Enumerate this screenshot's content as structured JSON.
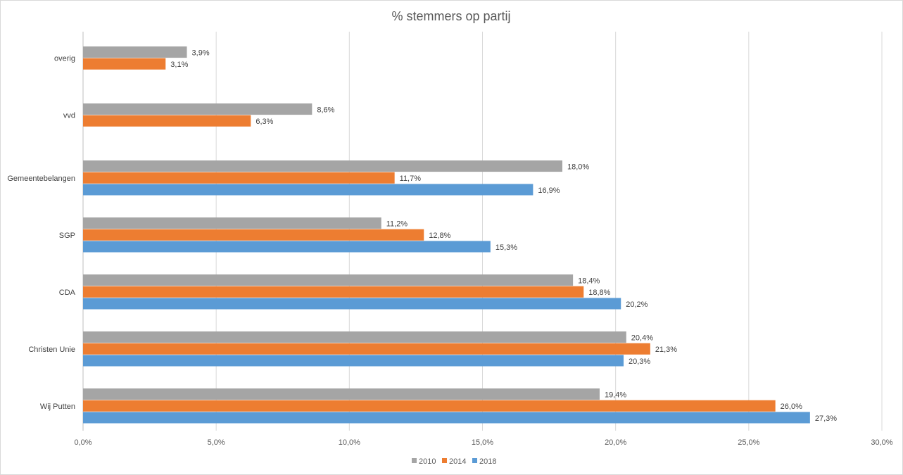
{
  "chart_data": {
    "type": "bar",
    "orientation": "horizontal",
    "title": "% stemmers op partij",
    "xlabel": "",
    "ylabel": "",
    "xlim": [
      0,
      30
    ],
    "x_ticks": [
      "0,0%",
      "5,0%",
      "10,0%",
      "15,0%",
      "20,0%",
      "25,0%",
      "30,0%"
    ],
    "grid": true,
    "legend_position": "bottom",
    "categories": [
      "overig",
      "vvd",
      "Gemeentebelangen",
      "SGP",
      "CDA",
      "Christen Unie",
      "Wij Putten"
    ],
    "series": [
      {
        "name": "2010",
        "color": "#a5a5a5",
        "values": [
          3.9,
          8.6,
          18.0,
          11.2,
          18.4,
          20.4,
          19.4
        ],
        "labels": [
          "3,9%",
          "8,6%",
          "18,0%",
          "11,2%",
          "18,4%",
          "20,4%",
          "19,4%"
        ]
      },
      {
        "name": "2014",
        "color": "#ed7d31",
        "values": [
          3.1,
          6.3,
          11.7,
          12.8,
          18.8,
          21.3,
          26.0
        ],
        "labels": [
          "3,1%",
          "6,3%",
          "11,7%",
          "12,8%",
          "18,8%",
          "21,3%",
          "26,0%"
        ]
      },
      {
        "name": "2018",
        "color": "#5b9bd5",
        "values": [
          null,
          null,
          16.9,
          15.3,
          20.2,
          20.3,
          27.3
        ],
        "labels": [
          null,
          null,
          "16,9%",
          "15,3%",
          "20,2%",
          "20,3%",
          "27,3%"
        ]
      }
    ]
  }
}
